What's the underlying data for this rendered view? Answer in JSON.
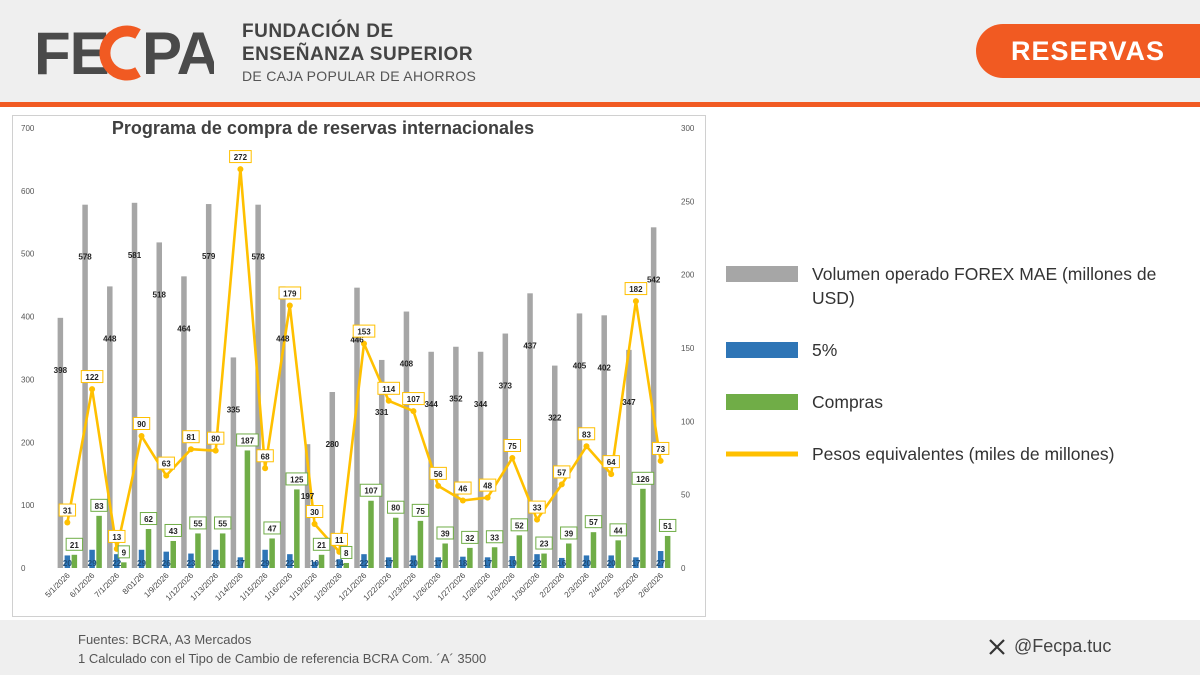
{
  "header": {
    "logo_text": "FECPA",
    "org_line1": "FUNDACIÓN DE",
    "org_line2": "ENSEÑANZA SUPERIOR",
    "org_line3": "DE CAJA POPULAR DE AHORROS",
    "badge": "RESERVAS"
  },
  "colors": {
    "accent": "#f15a22",
    "volume": "#a6a6a6",
    "five_pct": "#2e75b6",
    "compras": "#70ad47",
    "pesos": "#ffc000"
  },
  "legend": [
    {
      "label": "Volumen operado FOREX MAE (millones de USD)",
      "color": "#a6a6a6",
      "shape": "bar"
    },
    {
      "label": "5%",
      "color": "#2e75b6",
      "shape": "bar"
    },
    {
      "label": "Compras",
      "color": "#70ad47",
      "shape": "bar"
    },
    {
      "label": "Pesos equivalentes (miles de millones)",
      "color": "#ffc000",
      "shape": "line"
    }
  ],
  "footer": {
    "sources": "Fuentes: BCRA, A3 Mercados",
    "note": "1 Calculado con el Tipo de Cambio de referencia BCRA Com. ´A´ 3500",
    "social_handle": "@Fecpa.tuc",
    "social_icon": "x-logo-icon"
  },
  "chart_data": {
    "type": "bar",
    "title": "Programa de compra de reservas internacionales",
    "categories": [
      "5/1/2026",
      "6/1/2026",
      "7/1/2026",
      "8/01/26",
      "1/9/2026",
      "1/12/2026",
      "1/13/2026",
      "1/14/2026",
      "1/15/2026",
      "1/16/2026",
      "1/19/2026",
      "1/20/2026",
      "1/21/2026",
      "1/22/2026",
      "1/23/2026",
      "1/26/2026",
      "1/27/2026",
      "1/28/2026",
      "1/29/2026",
      "1/30/2026",
      "2/2/2026",
      "2/3/2026",
      "2/4/2026",
      "2/5/2026",
      "2/6/2026"
    ],
    "y_left": {
      "min": 0,
      "max": 700,
      "ticks": [
        0,
        100,
        200,
        300,
        400,
        500,
        600,
        700
      ]
    },
    "y_right": {
      "min": 0,
      "max": 300,
      "ticks": [
        0,
        50,
        100,
        150,
        200,
        250,
        300
      ]
    },
    "series": [
      {
        "name": "Volumen operado FOREX MAE (millones de USD)",
        "type": "bar",
        "axis": "left",
        "values": [
          398,
          578,
          448,
          581,
          518,
          464,
          579,
          335,
          578,
          448,
          197,
          280,
          446,
          331,
          408,
          344,
          352,
          344,
          373,
          437,
          322,
          405,
          402,
          347,
          542
        ]
      },
      {
        "name": "5%",
        "type": "bar",
        "axis": "left",
        "values": [
          20,
          29,
          22,
          29,
          26,
          23,
          29,
          17,
          29,
          22,
          10,
          14,
          22,
          17,
          20,
          17,
          18,
          17,
          19,
          22,
          16,
          20,
          20,
          17,
          27
        ]
      },
      {
        "name": "Compras",
        "type": "bar",
        "axis": "left",
        "values": [
          21,
          83,
          9,
          62,
          43,
          55,
          55,
          187,
          47,
          125,
          21,
          8,
          107,
          80,
          75,
          39,
          32,
          33,
          52,
          23,
          39,
          57,
          44,
          126,
          51
        ]
      },
      {
        "name": "Pesos equivalentes (miles de millones)",
        "type": "line",
        "axis": "right",
        "values": [
          31,
          122,
          13,
          90,
          63,
          81,
          80,
          272,
          68,
          179,
          30,
          11,
          153,
          114,
          107,
          56,
          46,
          48,
          75,
          33,
          57,
          83,
          64,
          182,
          73
        ]
      }
    ],
    "grid": false,
    "legend_position": "right"
  }
}
